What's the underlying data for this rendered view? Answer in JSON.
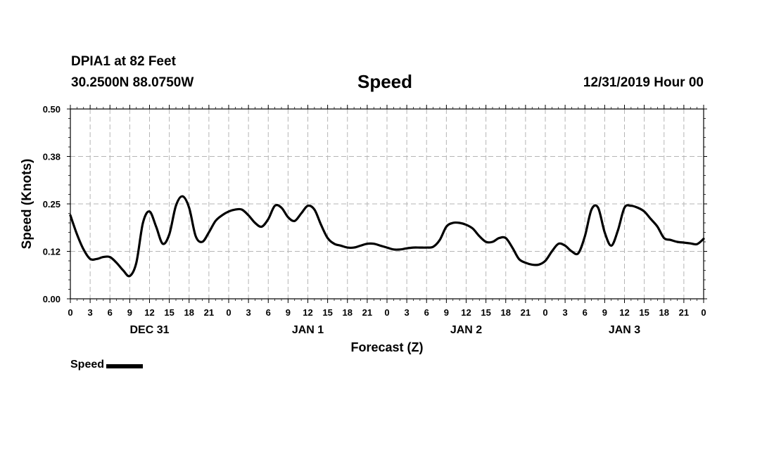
{
  "header": {
    "station": "DPIA1 at 82 Feet",
    "coordinates": "30.2500N 88.0750W",
    "title": "Speed",
    "datetime": "12/31/2019 Hour 00"
  },
  "legend": {
    "label": "Speed"
  },
  "chart_data": {
    "type": "line",
    "title": "Speed",
    "xlabel": "Forecast (Z)",
    "ylabel": "Speed (Knots)",
    "ylim": [
      0,
      0.5
    ],
    "yticks": [
      "0.00",
      "0.12",
      "0.25",
      "0.38",
      "0.50"
    ],
    "ytick_values": [
      0,
      0.125,
      0.25,
      0.375,
      0.5
    ],
    "xlim": [
      0,
      96
    ],
    "xticks": [
      "0",
      "3",
      "6",
      "9",
      "12",
      "15",
      "18",
      "21",
      "0",
      "3",
      "6",
      "9",
      "12",
      "15",
      "18",
      "21",
      "0",
      "3",
      "6",
      "9",
      "12",
      "15",
      "18",
      "21",
      "0",
      "3",
      "6",
      "9",
      "12",
      "15",
      "18",
      "21",
      "0"
    ],
    "day_labels": [
      {
        "label": "DEC 31",
        "hour": 12
      },
      {
        "label": "JAN 1",
        "hour": 36
      },
      {
        "label": "JAN 2",
        "hour": 60
      },
      {
        "label": "JAN 3",
        "hour": 84
      }
    ],
    "grid": true,
    "legend_position": "bottom-left",
    "series": [
      {
        "name": "Speed",
        "color": "#000000",
        "x": [
          0,
          1,
          2,
          3,
          4,
          5,
          6,
          7,
          8,
          9,
          10,
          11,
          12,
          13,
          14,
          15,
          16,
          17,
          18,
          19,
          20,
          21,
          22,
          23,
          24,
          25,
          26,
          27,
          28,
          29,
          30,
          31,
          32,
          33,
          34,
          35,
          36,
          37,
          38,
          39,
          40,
          41,
          42,
          43,
          44,
          45,
          46,
          47,
          48,
          49,
          50,
          51,
          52,
          53,
          54,
          55,
          56,
          57,
          58,
          59,
          60,
          61,
          62,
          63,
          64,
          65,
          66,
          67,
          68,
          69,
          70,
          71,
          72,
          73,
          74,
          75,
          76,
          77,
          78,
          79,
          80,
          81,
          82,
          83,
          84,
          85,
          86,
          87,
          88,
          89,
          90,
          91,
          92,
          93,
          94,
          95,
          96
        ],
        "values": [
          0.22,
          0.17,
          0.13,
          0.105,
          0.105,
          0.11,
          0.11,
          0.095,
          0.075,
          0.06,
          0.095,
          0.2,
          0.23,
          0.19,
          0.145,
          0.17,
          0.245,
          0.27,
          0.24,
          0.165,
          0.15,
          0.175,
          0.205,
          0.22,
          0.23,
          0.235,
          0.235,
          0.22,
          0.2,
          0.19,
          0.21,
          0.245,
          0.24,
          0.215,
          0.205,
          0.225,
          0.245,
          0.235,
          0.195,
          0.16,
          0.145,
          0.14,
          0.135,
          0.135,
          0.14,
          0.145,
          0.145,
          0.14,
          0.135,
          0.13,
          0.13,
          0.133,
          0.135,
          0.135,
          0.135,
          0.137,
          0.155,
          0.19,
          0.2,
          0.2,
          0.195,
          0.185,
          0.165,
          0.15,
          0.15,
          0.16,
          0.16,
          0.135,
          0.105,
          0.095,
          0.09,
          0.09,
          0.1,
          0.125,
          0.145,
          0.14,
          0.125,
          0.12,
          0.165,
          0.235,
          0.24,
          0.175,
          0.14,
          0.18,
          0.24,
          0.245,
          0.24,
          0.23,
          0.21,
          0.19,
          0.16,
          0.155,
          0.15,
          0.148,
          0.146,
          0.144,
          0.158
        ]
      }
    ]
  }
}
